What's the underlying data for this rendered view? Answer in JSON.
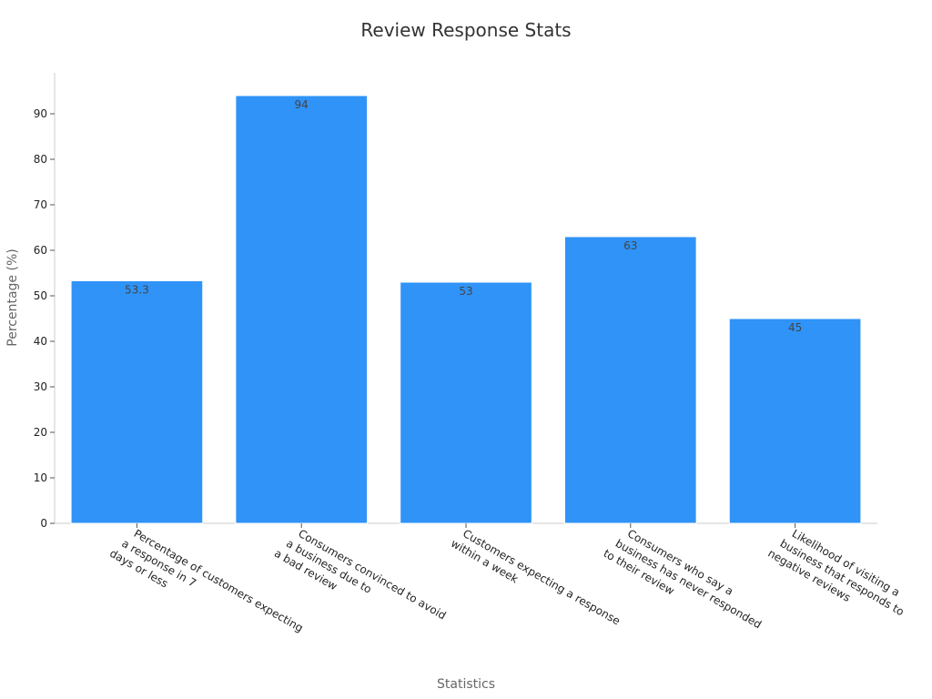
{
  "chart_data": {
    "type": "bar",
    "title": "Review Response Stats",
    "xlabel": "Statistics",
    "ylabel": "Percentage (%)",
    "categories": [
      [
        "Percentage of customers expecting",
        "a response in 7",
        "days or less"
      ],
      [
        "Consumers convinced to avoid",
        "a business due to",
        "a bad review"
      ],
      [
        "Customers expecting  a response",
        "within a week"
      ],
      [
        "Consumers who say a",
        "business has never responded",
        "to their review"
      ],
      [
        "Likelihood of visiting a",
        "business that responds to",
        "negative reviews"
      ]
    ],
    "values": [
      53.3,
      94,
      53,
      63,
      45
    ],
    "data_labels": [
      "53.3",
      "94",
      "53",
      "63",
      "45"
    ],
    "yticks": [
      0,
      10,
      20,
      30,
      40,
      50,
      60,
      70,
      80,
      90
    ],
    "ylim": [
      0,
      99
    ],
    "grid": false,
    "legend": "none",
    "bar_color": "#2f93f8"
  }
}
